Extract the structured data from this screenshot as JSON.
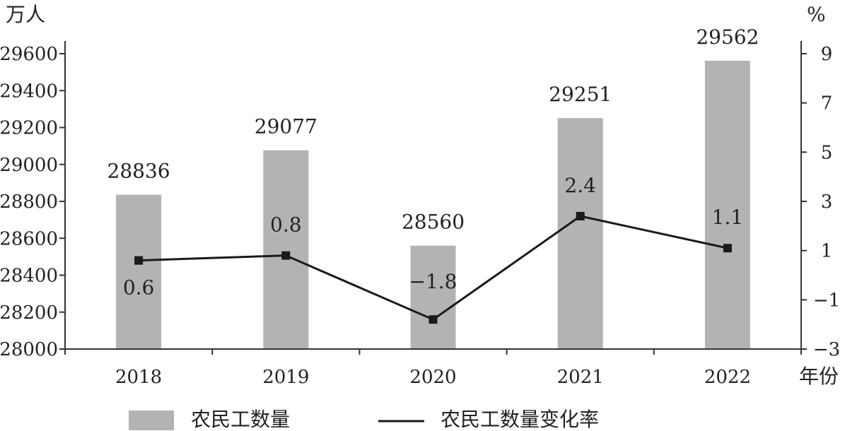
{
  "chart_data": {
    "type": "bar",
    "categories": [
      "2018",
      "2019",
      "2020",
      "2021",
      "2022"
    ],
    "series": [
      {
        "name": "农民工数量",
        "type": "bar",
        "axis": "left",
        "values": [
          28836,
          29077,
          28560,
          29251,
          29562
        ],
        "labels": [
          "28836",
          "29077",
          "28560",
          "29251",
          "29562"
        ],
        "color": "#b3b3b3"
      },
      {
        "name": "农民工数量变化率",
        "type": "line",
        "axis": "right",
        "values": [
          0.6,
          0.8,
          -1.8,
          2.4,
          1.1
        ],
        "labels": [
          "0.6",
          "0.8",
          "−1.8",
          "2.4",
          "1.1"
        ],
        "color": "#1a1a1a"
      }
    ],
    "y_left": {
      "unit": "万人",
      "ylim": [
        28000,
        29600
      ],
      "ticks": [
        "28000",
        "28200",
        "28400",
        "28600",
        "28800",
        "29000",
        "29200",
        "29400",
        "29600"
      ]
    },
    "y_right": {
      "unit": "%",
      "ylim": [
        -3,
        9
      ],
      "ticks": [
        "−3",
        "−1",
        "1",
        "3",
        "5",
        "7",
        "9"
      ]
    },
    "x_axis": {
      "unit": "年份"
    },
    "grid": false,
    "legend": "bottom"
  }
}
